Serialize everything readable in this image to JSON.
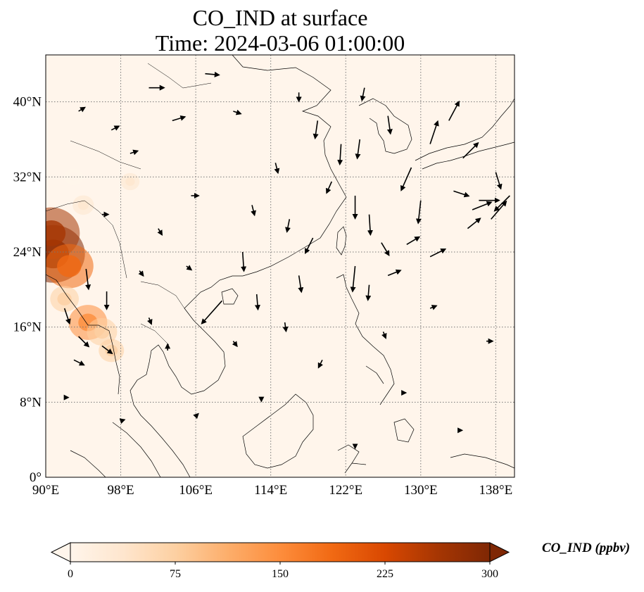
{
  "title": {
    "line1": "CO_IND at surface",
    "line2": "Time: 2024-03-06 01:00:00"
  },
  "map": {
    "lon_range": [
      90,
      140
    ],
    "lat_range": [
      0,
      45
    ],
    "lon_ticks": [
      {
        "value": 90,
        "label": "90°E"
      },
      {
        "value": 98,
        "label": "98°E"
      },
      {
        "value": 106,
        "label": "106°E"
      },
      {
        "value": 114,
        "label": "114°E"
      },
      {
        "value": 122,
        "label": "122°E"
      },
      {
        "value": 130,
        "label": "130°E"
      },
      {
        "value": 138,
        "label": "138°E"
      }
    ],
    "lat_ticks": [
      {
        "value": 0,
        "label": "0°"
      },
      {
        "value": 8,
        "label": "8°N"
      },
      {
        "value": 16,
        "label": "16°N"
      },
      {
        "value": 24,
        "label": "24°N"
      },
      {
        "value": 32,
        "label": "32°N"
      },
      {
        "value": 40,
        "label": "40°N"
      }
    ],
    "grid": true,
    "colors": {
      "background": "#fff5eb",
      "coastline": "#000000",
      "gridline": "#777777",
      "arrows": "#000000"
    }
  },
  "colorbar": {
    "label": "CO_IND (ppbv)",
    "min": 0,
    "max": 300,
    "ticks": [
      {
        "value": 0,
        "label": "0"
      },
      {
        "value": 75,
        "label": "75"
      },
      {
        "value": 150,
        "label": "150"
      },
      {
        "value": 225,
        "label": "225"
      },
      {
        "value": 300,
        "label": "300"
      }
    ],
    "extend": "both",
    "colormap": [
      "#fff5eb",
      "#fee6ce",
      "#fdd0a2",
      "#fdae6b",
      "#fd8d3c",
      "#f16913",
      "#d94801",
      "#a63603",
      "#7f2704"
    ]
  },
  "high_co_regions": [
    {
      "lon": 90.8,
      "lat": 23.8,
      "value": 290
    },
    {
      "lon": 90.6,
      "lat": 26.0,
      "value": 250
    },
    {
      "lon": 92.5,
      "lat": 22.5,
      "value": 200
    },
    {
      "lon": 94.5,
      "lat": 16.5,
      "value": 140
    },
    {
      "lon": 96.0,
      "lat": 15.5,
      "value": 90
    },
    {
      "lon": 92.0,
      "lat": 19.0,
      "value": 80
    },
    {
      "lon": 97.0,
      "lat": 13.5,
      "value": 60
    },
    {
      "lon": 94.0,
      "lat": 29.0,
      "value": 35
    },
    {
      "lon": 99.0,
      "lat": 31.5,
      "value": 20
    },
    {
      "lon": 93.0,
      "lat": 32.0,
      "value": 18
    }
  ],
  "wind_vectors": [
    {
      "lon": 94.3,
      "lat": 22.2,
      "u": 0.2,
      "v": -1.6
    },
    {
      "lon": 96.5,
      "lat": 19.8,
      "u": 0.0,
      "v": -1.4
    },
    {
      "lon": 92.0,
      "lat": 18.0,
      "u": 0.4,
      "v": -1.2
    },
    {
      "lon": 93.5,
      "lat": 15.0,
      "u": 0.8,
      "v": -0.8
    },
    {
      "lon": 96.0,
      "lat": 14.0,
      "u": 0.8,
      "v": -0.6
    },
    {
      "lon": 93.0,
      "lat": 12.5,
      "u": 0.8,
      "v": -0.4
    },
    {
      "lon": 101.0,
      "lat": 41.5,
      "u": 1.2,
      "v": 0.0
    },
    {
      "lon": 103.5,
      "lat": 38.0,
      "u": 1.0,
      "v": 0.3
    },
    {
      "lon": 107.0,
      "lat": 43.0,
      "u": 1.1,
      "v": -0.1
    },
    {
      "lon": 105.5,
      "lat": 30.0,
      "u": 0.6,
      "v": 0.0
    },
    {
      "lon": 108.8,
      "lat": 18.8,
      "u": -1.6,
      "v": -1.8
    },
    {
      "lon": 112.5,
      "lat": 19.5,
      "u": 0.1,
      "v": -1.2
    },
    {
      "lon": 117.0,
      "lat": 21.5,
      "u": 0.2,
      "v": -1.3
    },
    {
      "lon": 111.0,
      "lat": 24.0,
      "u": 0.1,
      "v": -1.5
    },
    {
      "lon": 119.0,
      "lat": 38.0,
      "u": -0.2,
      "v": -1.4
    },
    {
      "lon": 121.5,
      "lat": 35.5,
      "u": -0.1,
      "v": -1.6
    },
    {
      "lon": 123.5,
      "lat": 36.0,
      "u": -0.2,
      "v": -1.5
    },
    {
      "lon": 123.0,
      "lat": 30.0,
      "u": 0.0,
      "v": -1.8
    },
    {
      "lon": 124.5,
      "lat": 28.0,
      "u": 0.1,
      "v": -1.6
    },
    {
      "lon": 125.8,
      "lat": 25.0,
      "u": 0.6,
      "v": -1.0
    },
    {
      "lon": 123.0,
      "lat": 22.5,
      "u": -0.2,
      "v": -2.0
    },
    {
      "lon": 124.5,
      "lat": 20.5,
      "u": -0.1,
      "v": -1.2
    },
    {
      "lon": 126.5,
      "lat": 38.5,
      "u": 0.2,
      "v": -1.4
    },
    {
      "lon": 129.0,
      "lat": 33.0,
      "u": -0.8,
      "v": -1.8
    },
    {
      "lon": 131.0,
      "lat": 35.5,
      "u": 0.6,
      "v": 1.8
    },
    {
      "lon": 133.0,
      "lat": 38.0,
      "u": 0.8,
      "v": 1.5
    },
    {
      "lon": 134.5,
      "lat": 34.0,
      "u": 1.2,
      "v": 1.2
    },
    {
      "lon": 130.0,
      "lat": 29.5,
      "u": -0.2,
      "v": -1.8
    },
    {
      "lon": 133.5,
      "lat": 30.5,
      "u": 1.2,
      "v": -0.4
    },
    {
      "lon": 135.5,
      "lat": 28.5,
      "u": 1.5,
      "v": 0.6
    },
    {
      "lon": 136.2,
      "lat": 29.5,
      "u": 1.6,
      "v": 0.0
    },
    {
      "lon": 139.5,
      "lat": 30.0,
      "u": -1.2,
      "v": -1.2
    },
    {
      "lon": 138.0,
      "lat": 32.5,
      "u": 0.4,
      "v": -1.3
    },
    {
      "lon": 137.5,
      "lat": 27.5,
      "u": 1.2,
      "v": 1.4
    },
    {
      "lon": 131.0,
      "lat": 23.5,
      "u": 1.2,
      "v": 0.6
    },
    {
      "lon": 135.0,
      "lat": 26.5,
      "u": 1.0,
      "v": 0.8
    },
    {
      "lon": 128.5,
      "lat": 24.8,
      "u": 1.0,
      "v": 0.6
    },
    {
      "lon": 126.5,
      "lat": 21.5,
      "u": 1.0,
      "v": 0.4
    },
    {
      "lon": 116.0,
      "lat": 27.5,
      "u": -0.2,
      "v": -1.0
    },
    {
      "lon": 118.5,
      "lat": 25.5,
      "u": -0.6,
      "v": -1.2
    },
    {
      "lon": 114.5,
      "lat": 33.5,
      "u": 0.2,
      "v": -0.8
    },
    {
      "lon": 112.0,
      "lat": 29.0,
      "u": 0.2,
      "v": -0.8
    },
    {
      "lon": 120.5,
      "lat": 31.5,
      "u": -0.4,
      "v": -0.9
    },
    {
      "lon": 99.0,
      "lat": 34.5,
      "u": 0.6,
      "v": 0.2
    },
    {
      "lon": 97.0,
      "lat": 37.0,
      "u": 0.6,
      "v": 0.3
    },
    {
      "lon": 93.5,
      "lat": 39.0,
      "u": 0.5,
      "v": 0.3
    },
    {
      "lon": 102.0,
      "lat": 26.5,
      "u": 0.3,
      "v": -0.5
    },
    {
      "lon": 105.0,
      "lat": 22.5,
      "u": 0.4,
      "v": -0.3
    },
    {
      "lon": 101.0,
      "lat": 17.0,
      "u": 0.2,
      "v": -0.5
    },
    {
      "lon": 103.0,
      "lat": 13.5,
      "u": 0.0,
      "v": 0.5
    },
    {
      "lon": 110.0,
      "lat": 14.5,
      "u": 0.3,
      "v": -0.4
    },
    {
      "lon": 115.5,
      "lat": 16.5,
      "u": 0.1,
      "v": -0.7
    },
    {
      "lon": 119.5,
      "lat": 12.5,
      "u": -0.3,
      "v": -0.6
    },
    {
      "lon": 126.0,
      "lat": 15.5,
      "u": 0.2,
      "v": -0.5
    },
    {
      "lon": 131.0,
      "lat": 18.0,
      "u": 0.5,
      "v": 0.2
    },
    {
      "lon": 137.0,
      "lat": 14.5,
      "u": 0.5,
      "v": 0.0
    },
    {
      "lon": 128.0,
      "lat": 9.0,
      "u": 0.3,
      "v": 0.0
    },
    {
      "lon": 113.0,
      "lat": 8.5,
      "u": 0.0,
      "v": -0.3
    },
    {
      "lon": 106.0,
      "lat": 6.5,
      "u": 0.2,
      "v": 0.2
    },
    {
      "lon": 98.0,
      "lat": 6.0,
      "u": 0.3,
      "v": 0.1
    },
    {
      "lon": 92.0,
      "lat": 8.5,
      "u": 0.3,
      "v": 0.0
    },
    {
      "lon": 123.0,
      "lat": 3.5,
      "u": 0.0,
      "v": -0.3
    },
    {
      "lon": 134.0,
      "lat": 5.0,
      "u": 0.3,
      "v": 0.0
    },
    {
      "lon": 117.0,
      "lat": 41.0,
      "u": 0.0,
      "v": -0.7
    },
    {
      "lon": 124.0,
      "lat": 41.5,
      "u": -0.2,
      "v": -1.0
    },
    {
      "lon": 110.0,
      "lat": 39.0,
      "u": 0.6,
      "v": -0.2
    },
    {
      "lon": 96.0,
      "lat": 28.0,
      "u": 0.5,
      "v": 0.0
    },
    {
      "lon": 100.0,
      "lat": 22.0,
      "u": 0.3,
      "v": -0.4
    }
  ]
}
